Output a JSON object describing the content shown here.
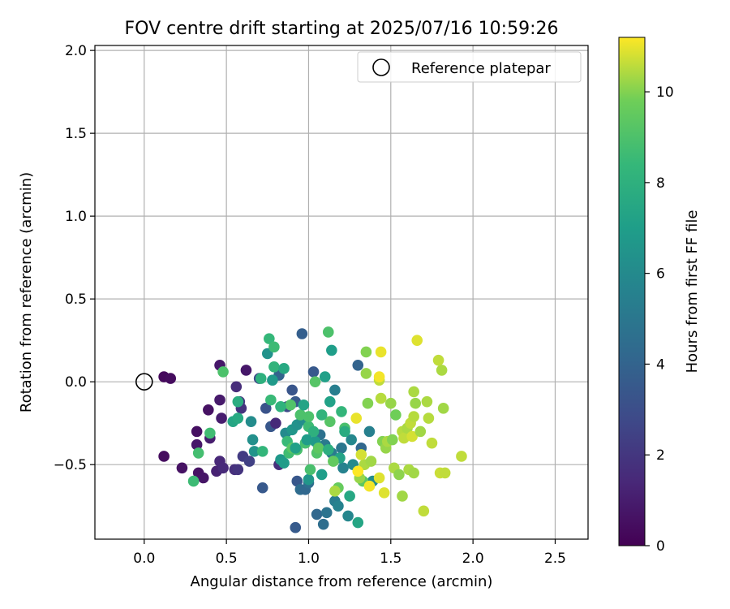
{
  "chart_data": {
    "type": "scatter",
    "title": "FOV centre drift starting at 2025/07/16 10:59:26",
    "xlabel": "Angular distance from reference (arcmin)",
    "ylabel": "Rotation from reference (arcmin)",
    "xlim": [
      -0.3,
      2.7
    ],
    "ylim": [
      -0.95,
      2.03
    ],
    "xticks": [
      "0.0",
      "0.5",
      "1.0",
      "1.5",
      "2.0",
      "2.5"
    ],
    "yticks": [
      "−0.5",
      "0.0",
      "0.5",
      "1.0",
      "1.5",
      "2.0"
    ],
    "grid": true,
    "legend": {
      "position": "top-right",
      "entries": [
        "Reference platepar"
      ]
    },
    "reference_point": {
      "x": 0.0,
      "y": 0.0,
      "label": "Reference platepar"
    },
    "colorbar": {
      "label": "Hours from first FF file",
      "colormap": "viridis",
      "range": [
        0,
        11.2
      ],
      "ticks": [
        "0",
        "2",
        "4",
        "6",
        "8",
        "10"
      ]
    },
    "points": [
      [
        0.12,
        0.03,
        0.3
      ],
      [
        0.16,
        0.02,
        0.4
      ],
      [
        0.12,
        -0.45,
        0.4
      ],
      [
        0.23,
        -0.52,
        0.6
      ],
      [
        0.32,
        -0.3,
        0.5
      ],
      [
        0.33,
        -0.55,
        0.6
      ],
      [
        0.36,
        -0.58,
        0.7
      ],
      [
        0.32,
        -0.38,
        0.8
      ],
      [
        0.39,
        -0.17,
        0.6
      ],
      [
        0.4,
        -0.34,
        1.0
      ],
      [
        0.46,
        0.1,
        0.8
      ],
      [
        0.46,
        -0.11,
        0.9
      ],
      [
        0.47,
        -0.22,
        1.0
      ],
      [
        0.44,
        -0.54,
        1.2
      ],
      [
        0.46,
        -0.48,
        1.4
      ],
      [
        0.48,
        -0.52,
        1.5
      ],
      [
        0.55,
        -0.53,
        1.7
      ],
      [
        0.57,
        -0.53,
        1.9
      ],
      [
        0.62,
        0.07,
        0.8
      ],
      [
        0.56,
        -0.03,
        1.6
      ],
      [
        0.59,
        -0.16,
        1.8
      ],
      [
        0.6,
        -0.45,
        2.2
      ],
      [
        0.64,
        -0.48,
        2.4
      ],
      [
        0.58,
        -0.12,
        2.0
      ],
      [
        0.7,
        0.02,
        2.8
      ],
      [
        0.74,
        -0.16,
        3.2
      ],
      [
        0.77,
        -0.27,
        3.4
      ],
      [
        0.8,
        -0.25,
        1.5
      ],
      [
        0.72,
        -0.64,
        3.5
      ],
      [
        0.82,
        -0.5,
        1.7
      ],
      [
        0.82,
        0.04,
        4.0
      ],
      [
        0.87,
        -0.15,
        2.8
      ],
      [
        0.9,
        -0.05,
        3.3
      ],
      [
        0.92,
        -0.12,
        3.5
      ],
      [
        0.96,
        0.29,
        3.8
      ],
      [
        0.93,
        -0.6,
        3.4
      ],
      [
        0.92,
        -0.88,
        3.6
      ],
      [
        0.95,
        -0.65,
        4.4
      ],
      [
        0.98,
        -0.65,
        4.2
      ],
      [
        0.96,
        -0.23,
        4.3
      ],
      [
        1.0,
        -0.61,
        4.6
      ],
      [
        1.03,
        0.06,
        3.5
      ],
      [
        1.05,
        -0.8,
        4.2
      ],
      [
        1.09,
        -0.86,
        4.5
      ],
      [
        1.11,
        -0.79,
        4.8
      ],
      [
        1.07,
        -0.32,
        4.7
      ],
      [
        1.1,
        -0.38,
        5.1
      ],
      [
        1.14,
        -0.43,
        5.2
      ],
      [
        1.16,
        -0.05,
        5.4
      ],
      [
        1.2,
        -0.4,
        5.0
      ],
      [
        1.21,
        -0.52,
        5.6
      ],
      [
        1.16,
        -0.72,
        5.3
      ],
      [
        1.18,
        -0.75,
        5.6
      ],
      [
        1.24,
        -0.81,
        5.8
      ],
      [
        1.27,
        -0.5,
        6.0
      ],
      [
        1.3,
        0.1,
        4.0
      ],
      [
        1.32,
        -0.4,
        4.2
      ],
      [
        1.37,
        -0.3,
        5.5
      ],
      [
        1.39,
        -0.6,
        6.1
      ],
      [
        1.26,
        -0.35,
        5.9
      ],
      [
        0.65,
        -0.24,
        6.1
      ],
      [
        0.66,
        -0.35,
        6.3
      ],
      [
        0.67,
        -0.42,
        6.5
      ],
      [
        0.75,
        0.17,
        6.4
      ],
      [
        0.78,
        0.01,
        6.8
      ],
      [
        0.83,
        -0.47,
        6.7
      ],
      [
        0.85,
        -0.49,
        6.9
      ],
      [
        0.86,
        -0.31,
        6.0
      ],
      [
        0.9,
        -0.29,
        6.6
      ],
      [
        0.93,
        -0.26,
        6.4
      ],
      [
        0.96,
        -0.23,
        6.2
      ],
      [
        1.0,
        -0.59,
        6.6
      ],
      [
        1.04,
        -0.36,
        6.8
      ],
      [
        1.08,
        -0.56,
        7.0
      ],
      [
        1.1,
        0.03,
        7.1
      ],
      [
        1.13,
        -0.12,
        7.2
      ],
      [
        1.14,
        0.19,
        7.0
      ],
      [
        1.19,
        -0.46,
        7.3
      ],
      [
        1.25,
        -0.69,
        7.5
      ],
      [
        1.3,
        -0.85,
        7.4
      ],
      [
        0.54,
        -0.24,
        7.4
      ],
      [
        0.57,
        -0.22,
        7.6
      ],
      [
        0.57,
        -0.12,
        7.8
      ],
      [
        0.71,
        0.02,
        8.0
      ],
      [
        0.72,
        -0.42,
        8.3
      ],
      [
        0.76,
        0.26,
        8.4
      ],
      [
        0.77,
        -0.11,
        8.5
      ],
      [
        0.79,
        0.09,
        8.2
      ],
      [
        0.79,
        0.21,
        8.6
      ],
      [
        0.87,
        -0.36,
        8.5
      ],
      [
        0.88,
        -0.43,
        8.7
      ],
      [
        0.93,
        -0.41,
        8.9
      ],
      [
        0.95,
        -0.2,
        9.0
      ],
      [
        0.98,
        -0.37,
        8.8
      ],
      [
        1.0,
        -0.27,
        8.6
      ],
      [
        1.01,
        -0.53,
        8.9
      ],
      [
        1.04,
        0.0,
        9.2
      ],
      [
        1.05,
        -0.43,
        9.1
      ],
      [
        1.06,
        -0.4,
        9.4
      ],
      [
        1.12,
        0.3,
        9.0
      ],
      [
        1.13,
        -0.24,
        9.2
      ],
      [
        1.15,
        -0.48,
        9.5
      ],
      [
        1.18,
        -0.64,
        9.6
      ],
      [
        1.22,
        -0.28,
        8.9
      ],
      [
        1.33,
        -0.6,
        9.4
      ],
      [
        0.3,
        -0.6,
        8.6
      ],
      [
        0.33,
        -0.43,
        8.8
      ],
      [
        0.4,
        -0.31,
        8.7
      ],
      [
        0.48,
        0.06,
        9.0
      ],
      [
        0.89,
        -0.14,
        9.1
      ],
      [
        0.9,
        -0.4,
        9.3
      ],
      [
        1.0,
        -0.21,
        9.0
      ],
      [
        1.16,
        -0.66,
        10.4
      ],
      [
        1.31,
        -0.58,
        10.2
      ],
      [
        1.35,
        0.05,
        10.2
      ],
      [
        1.35,
        0.18,
        10.0
      ],
      [
        1.34,
        -0.5,
        10.4
      ],
      [
        1.38,
        -0.48,
        10.3
      ],
      [
        1.43,
        0.01,
        10.6
      ],
      [
        1.44,
        -0.1,
        10.5
      ],
      [
        1.45,
        -0.36,
        10.0
      ],
      [
        1.47,
        -0.4,
        10.2
      ],
      [
        1.48,
        -0.36,
        10.4
      ],
      [
        1.5,
        -0.13,
        10.2
      ],
      [
        1.51,
        -0.35,
        10.0
      ],
      [
        1.52,
        -0.52,
        10.4
      ],
      [
        1.53,
        -0.2,
        9.8
      ],
      [
        1.55,
        -0.56,
        10.1
      ],
      [
        1.57,
        -0.3,
        10.5
      ],
      [
        1.58,
        -0.34,
        10.6
      ],
      [
        1.57,
        -0.69,
        10.3
      ],
      [
        1.6,
        -0.28,
        10.4
      ],
      [
        1.61,
        -0.53,
        10.4
      ],
      [
        1.62,
        -0.25,
        10.6
      ],
      [
        1.63,
        -0.33,
        10.8
      ],
      [
        1.64,
        -0.21,
        10.5
      ],
      [
        1.64,
        -0.06,
        10.4
      ],
      [
        1.65,
        -0.13,
        10.2
      ],
      [
        1.64,
        -0.55,
        10.3
      ],
      [
        1.68,
        -0.3,
        10.3
      ],
      [
        1.7,
        -0.78,
        10.6
      ],
      [
        1.72,
        -0.12,
        10.4
      ],
      [
        1.73,
        -0.22,
        10.5
      ],
      [
        1.75,
        -0.37,
        10.6
      ],
      [
        1.8,
        -0.55,
        10.7
      ],
      [
        1.81,
        0.07,
        10.4
      ],
      [
        1.79,
        0.13,
        10.6
      ],
      [
        1.82,
        -0.16,
        10.3
      ],
      [
        1.83,
        -0.55,
        10.6
      ],
      [
        1.93,
        -0.45,
        10.6
      ],
      [
        1.66,
        0.25,
        10.9
      ],
      [
        1.44,
        0.18,
        11.0
      ],
      [
        1.46,
        -0.67,
        10.9
      ],
      [
        1.37,
        -0.63,
        11.1
      ],
      [
        1.29,
        -0.22,
        11.0
      ],
      [
        1.3,
        -0.54,
        11.2
      ],
      [
        1.43,
        0.03,
        11.1
      ],
      [
        1.32,
        -0.44,
        10.8
      ],
      [
        1.43,
        -0.58,
        10.9
      ],
      [
        1.36,
        -0.13,
        10.0
      ],
      [
        1.2,
        -0.18,
        8.3
      ],
      [
        1.22,
        -0.3,
        7.7
      ],
      [
        1.03,
        -0.3,
        8.0
      ],
      [
        0.83,
        -0.15,
        8.1
      ],
      [
        0.85,
        0.08,
        7.6
      ],
      [
        1.08,
        -0.2,
        8.2
      ],
      [
        1.12,
        -0.41,
        7.9
      ],
      [
        0.92,
        -0.4,
        7.1
      ],
      [
        0.97,
        -0.14,
        7.3
      ],
      [
        0.99,
        -0.35,
        6.9
      ]
    ]
  }
}
